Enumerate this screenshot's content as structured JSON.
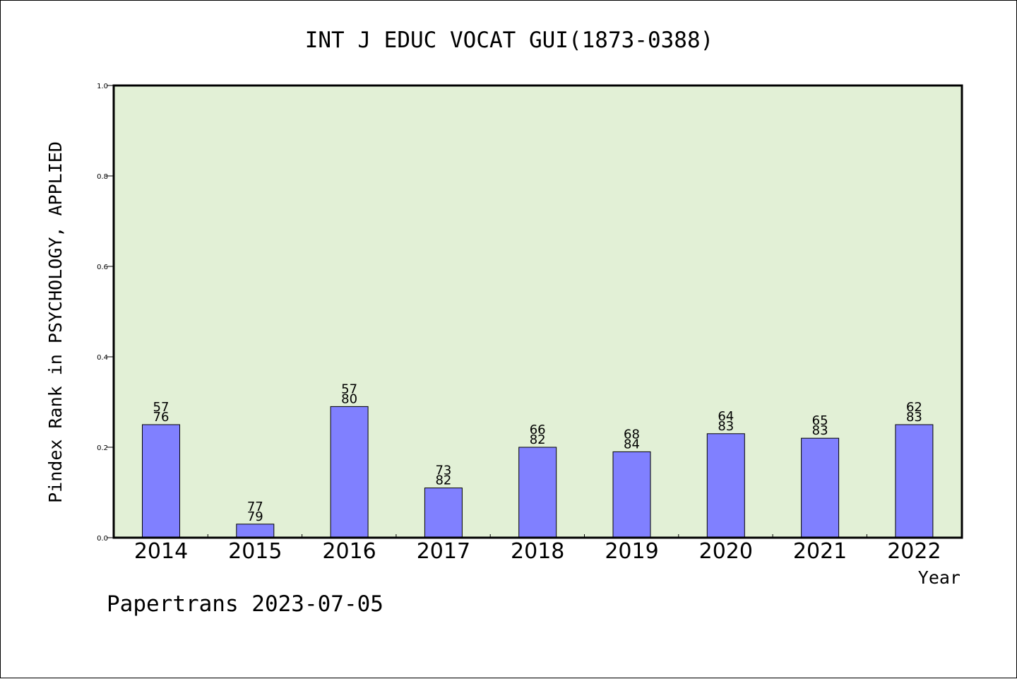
{
  "chart_data": {
    "type": "bar",
    "title": "INT J EDUC VOCAT GUI(1873-0388)",
    "xlabel": "Year",
    "ylabel": "Pindex Rank in PSYCHOLOGY, APPLIED",
    "ylim": [
      0,
      1.0
    ],
    "yticks": [
      "0.0",
      "0.2",
      "0.4",
      "0.6",
      "0.8",
      "1.0"
    ],
    "categories": [
      "2014",
      "2015",
      "2016",
      "2017",
      "2018",
      "2019",
      "2020",
      "2021",
      "2022"
    ],
    "values": [
      0.25,
      0.03,
      0.29,
      0.11,
      0.2,
      0.19,
      0.23,
      0.22,
      0.25
    ],
    "bar_labels": [
      {
        "top": "57",
        "bottom": "76"
      },
      {
        "top": "77",
        "bottom": "79"
      },
      {
        "top": "57",
        "bottom": "80"
      },
      {
        "top": "73",
        "bottom": "82"
      },
      {
        "top": "66",
        "bottom": "82"
      },
      {
        "top": "68",
        "bottom": "84"
      },
      {
        "top": "64",
        "bottom": "83"
      },
      {
        "top": "65",
        "bottom": "83"
      },
      {
        "top": "62",
        "bottom": "83"
      }
    ],
    "grid": false,
    "colors": {
      "plot_background": "#e2f0d6",
      "bar_fill": "#8080ff",
      "bar_edge": "#000000"
    }
  },
  "footer": "Papertrans 2023-07-05"
}
